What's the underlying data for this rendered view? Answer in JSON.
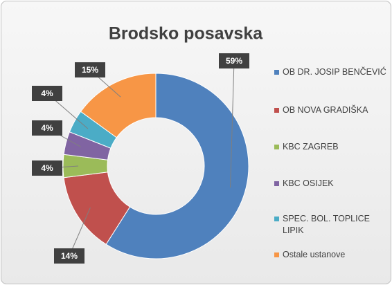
{
  "chart_data": {
    "type": "doughnut",
    "title": "Brodsko posavska",
    "categories": [
      "OB DR. JOSIP BENČEVIĆ",
      "OB NOVA GRADIŠKA",
      "KBC ZAGREB",
      "KBC OSIJEK",
      "SPEC. BOL. TOPLICE LIPIK",
      "Ostale ustanove"
    ],
    "values": [
      59,
      14,
      4,
      4,
      4,
      15
    ],
    "value_labels": [
      "59%",
      "14%",
      "4%",
      "4%",
      "4%",
      "15%"
    ],
    "colors": [
      "#4f81bd",
      "#c0504d",
      "#9bbb59",
      "#8064a2",
      "#4bacc6",
      "#f79646"
    ],
    "legend": "right"
  }
}
